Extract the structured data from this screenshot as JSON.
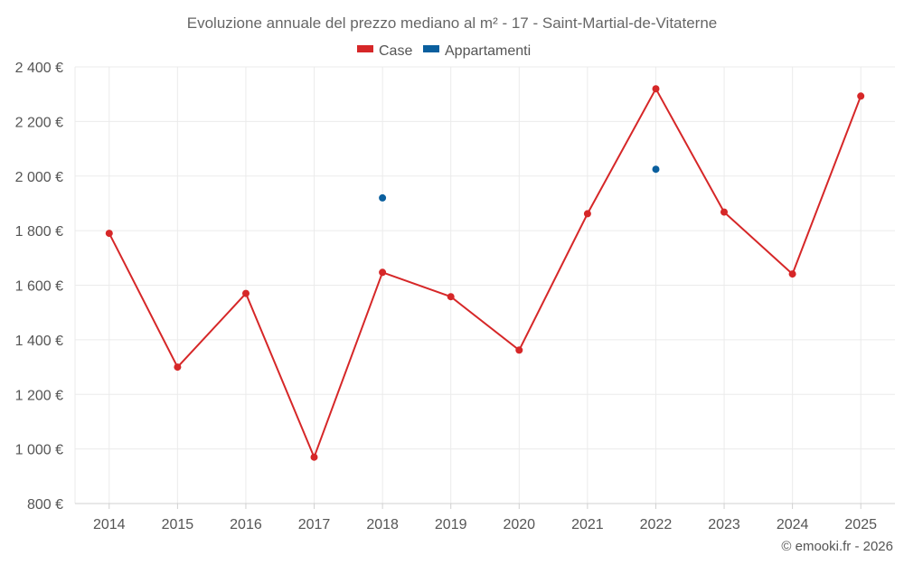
{
  "chart_data": {
    "type": "line",
    "title": "Evoluzione annuale del prezzo mediano al m² - 17 - Saint-Martial-de-Vitaterne",
    "categories": [
      "2014",
      "2015",
      "2016",
      "2017",
      "2018",
      "2019",
      "2020",
      "2021",
      "2022",
      "2023",
      "2024",
      "2025"
    ],
    "ylim": [
      800,
      2400
    ],
    "yticks": [
      800,
      1000,
      1200,
      1400,
      1600,
      1800,
      2000,
      2200,
      2400
    ],
    "ytick_labels": [
      "800 €",
      "1 000 €",
      "1 200 €",
      "1 400 €",
      "1 600 €",
      "1 800 €",
      "2 000 €",
      "2 200 €",
      "2 400 €"
    ],
    "xlabel": "",
    "ylabel": "",
    "grid": true,
    "legend_position": "top-center",
    "series": [
      {
        "name": "Case",
        "color": "#d62728",
        "values": [
          1790,
          1300,
          1570,
          970,
          1647,
          1558,
          1362,
          1862,
          2320,
          1868,
          1641,
          2293
        ]
      },
      {
        "name": "Appartamenti",
        "color": "#0a5f9e",
        "values": [
          null,
          null,
          null,
          null,
          1920,
          null,
          null,
          null,
          2025,
          null,
          null,
          null
        ]
      }
    ]
  },
  "credit": "© emooki.fr - 2026"
}
